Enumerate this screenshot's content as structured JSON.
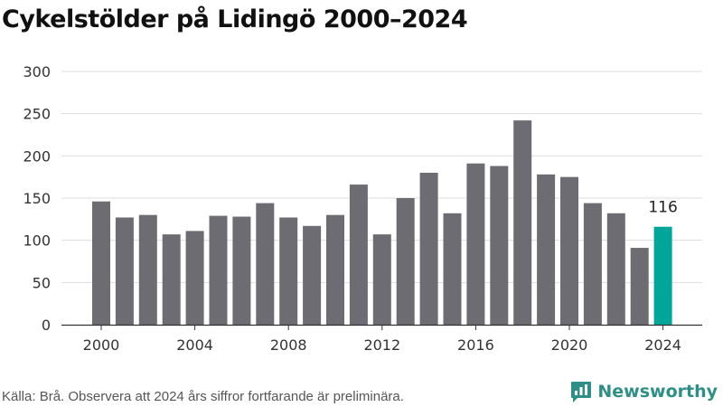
{
  "header": {
    "title": "Cykelstölder på Lidingö 2000–2024"
  },
  "footer": {
    "source_note": "Källa: Brå. Observera att 2024 års siffror fortfarande är preliminära.",
    "brand_name": "Newsworthy",
    "brand_icon": "newsworthy-logo-icon"
  },
  "colors": {
    "bar": "#6d6c72",
    "highlight": "#00a699",
    "grid": "#dddddd",
    "axis": "#333333",
    "brand": "#2e8f87"
  },
  "chart_data": {
    "type": "bar",
    "title": "Cykelstölder på Lidingö 2000–2024",
    "xlabel": "",
    "ylabel": "",
    "ylim": [
      0,
      300
    ],
    "yticks": [
      0,
      50,
      100,
      150,
      200,
      250,
      300
    ],
    "xticks": [
      "2000",
      "2004",
      "2008",
      "2012",
      "2016",
      "2020",
      "2024"
    ],
    "grid": true,
    "categories": [
      "2000",
      "2001",
      "2002",
      "2003",
      "2004",
      "2005",
      "2006",
      "2007",
      "2008",
      "2009",
      "2010",
      "2011",
      "2012",
      "2013",
      "2014",
      "2015",
      "2016",
      "2017",
      "2018",
      "2019",
      "2020",
      "2021",
      "2022",
      "2023",
      "2024"
    ],
    "values": [
      146,
      127,
      130,
      107,
      111,
      129,
      128,
      144,
      127,
      117,
      130,
      166,
      107,
      150,
      180,
      132,
      191,
      188,
      242,
      178,
      175,
      144,
      132,
      91,
      116
    ],
    "highlight_index": 24,
    "data_labels": [
      {
        "category": "2024",
        "text": "116"
      }
    ]
  }
}
